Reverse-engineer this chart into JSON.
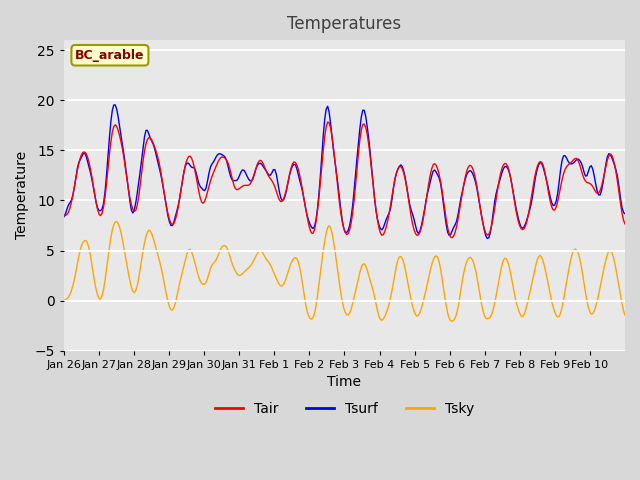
{
  "title": "Temperatures",
  "xlabel": "Time",
  "ylabel": "Temperature",
  "annotation": "BC_arable",
  "ylim": [
    -5,
    26
  ],
  "yticks": [
    -5,
    0,
    5,
    10,
    15,
    20,
    25
  ],
  "xtick_labels": [
    "Jan 26",
    "Jan 27",
    "Jan 28",
    "Jan 29",
    "Jan 30",
    "Jan 31",
    "Feb 1",
    "Feb 2",
    "Feb 3",
    "Feb 4",
    "Feb 5",
    "Feb 6",
    "Feb 7",
    "Feb 8",
    "Feb 9",
    "Feb 10"
  ],
  "legend_labels": [
    "Tair",
    "Tsurf",
    "Tsky"
  ],
  "line_colors": [
    "red",
    "blue",
    "orange"
  ],
  "bg_color": "#e8e8e8",
  "fig_bg_color": "#d8d8d8",
  "annotation_box_color": "#ffffcc",
  "annotation_text_color": "#8b0000",
  "title_color": "#404040",
  "grid_color": "#ffffff"
}
